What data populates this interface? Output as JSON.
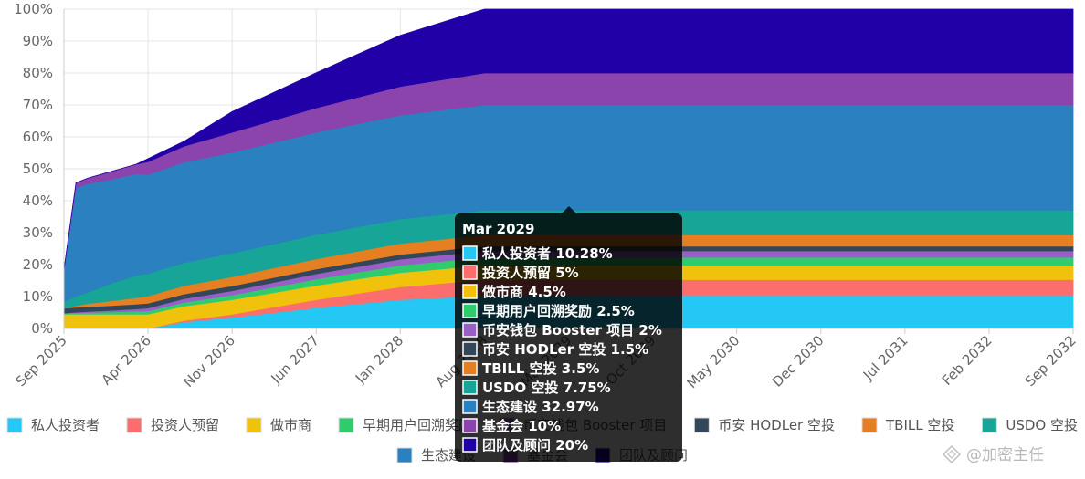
{
  "chart_data": {
    "type": "area",
    "stacked": true,
    "ylim": [
      0,
      100
    ],
    "y_ticks": [
      "0%",
      "10%",
      "20%",
      "30%",
      "40%",
      "50%",
      "60%",
      "70%",
      "80%",
      "90%",
      "100%"
    ],
    "x_ticks": [
      "Sep 2025",
      "Apr 2026",
      "Nov 2026",
      "Jun 2027",
      "Jan 2028",
      "Aug 2028",
      "Mar 2029",
      "Oct 2029",
      "May 2030",
      "Dec 2030",
      "Jul 2031",
      "Feb 2032",
      "Sep 2032"
    ],
    "x": [
      "Sep 2025",
      "Oct 2025",
      "Nov 2025",
      "Jan 2026",
      "Mar 2026",
      "Apr 2026",
      "Jul 2026",
      "Nov 2026",
      "Jun 2027",
      "Jan 2028",
      "Aug 2028",
      "Mar 2029",
      "Sep 2032"
    ],
    "grid": true,
    "legend_position": "bottom",
    "series": [
      {
        "name": "私人投资者",
        "color": "#24c8f5",
        "values": [
          0,
          0,
          0,
          0,
          0,
          0,
          2,
          3.5,
          6.5,
          9,
          10.28,
          10.28,
          10.28
        ]
      },
      {
        "name": "投资人预留",
        "color": "#fc6d6d",
        "values": [
          0,
          0,
          0,
          0,
          0,
          0,
          0.5,
          1,
          2.5,
          4,
          5,
          5,
          5
        ]
      },
      {
        "name": "做市商",
        "color": "#f0c20c",
        "values": [
          4.5,
          4.5,
          4.5,
          4.5,
          4.5,
          4.5,
          4.5,
          4.5,
          4.5,
          4.5,
          4.5,
          4.5,
          4.5
        ]
      },
      {
        "name": "早期用户回溯奖励",
        "color": "#2fcc6e",
        "values": [
          0.3,
          0.4,
          0.5,
          0.7,
          0.9,
          1,
          1.2,
          1.5,
          2,
          2.3,
          2.5,
          2.5,
          2.5
        ]
      },
      {
        "name": "币安钱包 Booster 项目",
        "color": "#9a5ec7",
        "values": [
          0,
          0.2,
          0.3,
          0.5,
          0.7,
          0.9,
          1.1,
          1.3,
          1.6,
          1.9,
          2,
          2,
          2
        ]
      },
      {
        "name": "币安 HODLer 空投",
        "color": "#33475b",
        "values": [
          1.5,
          1.5,
          1.5,
          1.5,
          1.5,
          1.5,
          1.5,
          1.5,
          1.5,
          1.5,
          1.5,
          1.5,
          1.5
        ]
      },
      {
        "name": "TBILL 空投",
        "color": "#e67e22",
        "values": [
          0,
          0.5,
          1,
          1.5,
          2,
          2.3,
          2.6,
          2.9,
          3.2,
          3.4,
          3.5,
          3.5,
          3.5
        ]
      },
      {
        "name": "USDO 空投",
        "color": "#16a596",
        "values": [
          2,
          3,
          3.5,
          5.5,
          7,
          7,
          7.2,
          7.4,
          7.6,
          7.7,
          7.75,
          7.75,
          7.75
        ]
      },
      {
        "name": "生态建设",
        "color": "#2b80bf",
        "values": [
          10,
          34,
          34,
          32.5,
          31.8,
          31,
          31.5,
          31.5,
          32,
          32.5,
          32.97,
          32.97,
          32.97
        ]
      },
      {
        "name": "基金会",
        "color": "#8c44ad",
        "values": [
          0,
          1.5,
          1.8,
          2.5,
          3,
          4,
          5,
          6.3,
          7.7,
          9,
          10,
          10,
          10
        ]
      },
      {
        "name": "团队及顾问",
        "color": "#2200a8",
        "values": [
          0,
          0,
          0,
          0,
          0,
          1,
          1.5,
          6.5,
          11,
          16,
          20,
          20,
          20
        ]
      }
    ],
    "tooltip": {
      "title": "Mar 2029",
      "lines": [
        "私人投资者 10.28%",
        "投资人预留 5%",
        "做市商 4.5%",
        "早期用户回溯奖励 2.5%",
        "币安钱包 Booster 项目 2%",
        "币安 HODLer 空投 1.5%",
        "TBILL 空投 3.5%",
        "USDO 空投 7.75%",
        "生态建设 32.97%",
        "基金会 10%",
        "团队及顾问 20%"
      ]
    }
  },
  "watermark": {
    "text": "@加密主任",
    "icon": "diamond-logo-icon"
  }
}
